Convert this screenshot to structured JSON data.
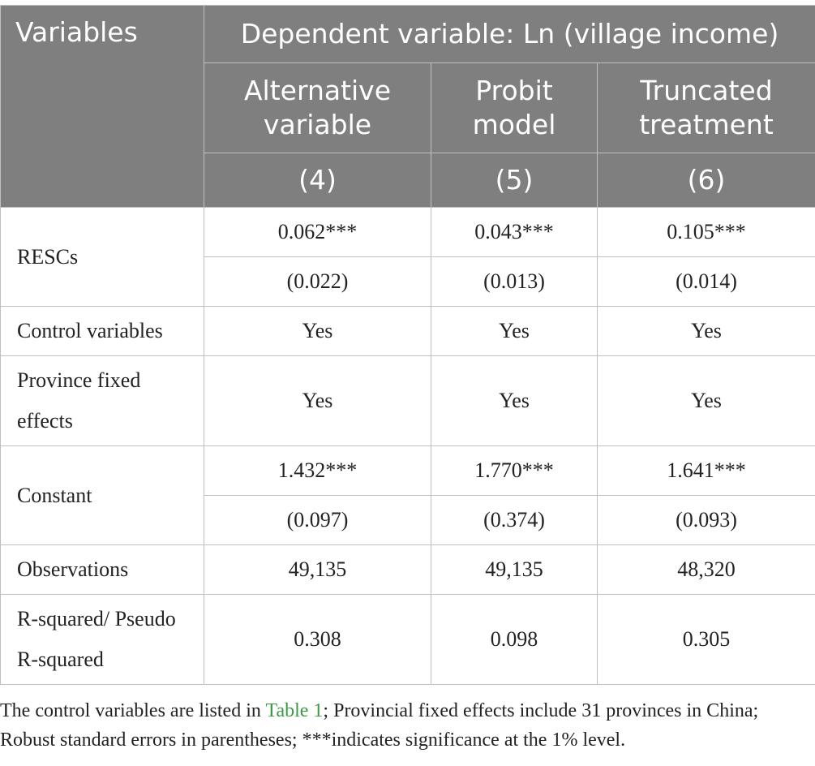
{
  "table": {
    "header": {
      "variables": "Variables",
      "dependent": "Dependent variable: Ln (village income)",
      "columns": [
        "Alternative variable",
        "Probit model",
        "Truncated treatment"
      ],
      "numbers": [
        "(4)",
        "(5)",
        "(6)"
      ]
    },
    "rows": {
      "rescs": {
        "label": "RESCs",
        "coef": [
          "0.062***",
          "0.043***",
          "0.105***"
        ],
        "se": [
          "(0.022)",
          "(0.013)",
          "(0.014)"
        ]
      },
      "controls": {
        "label": "Control variables",
        "values": [
          "Yes",
          "Yes",
          "Yes"
        ]
      },
      "province_fe": {
        "label": "Province fixed effects",
        "values": [
          "Yes",
          "Yes",
          "Yes"
        ]
      },
      "constant": {
        "label": "Constant",
        "coef": [
          "1.432***",
          "1.770***",
          "1.641***"
        ],
        "se": [
          "(0.097)",
          "(0.374)",
          "(0.093)"
        ]
      },
      "observations": {
        "label": "Observations",
        "values": [
          "49,135",
          "49,135",
          "48,320"
        ]
      },
      "r_squared": {
        "label": "R-squared/ Pseudo R-squared",
        "values": [
          "0.308",
          "0.098",
          "0.305"
        ]
      }
    }
  },
  "note": {
    "before": "The control variables are listed in ",
    "link": "Table 1",
    "after": "; Provincial fixed effects include 31 provinces in China; Robust standard errors in parentheses; ***indicates significance at the 1% level."
  },
  "colors": {
    "header_bg": "#7f7f7f",
    "border": "#bfbfbf",
    "link": "#3a9a44"
  }
}
